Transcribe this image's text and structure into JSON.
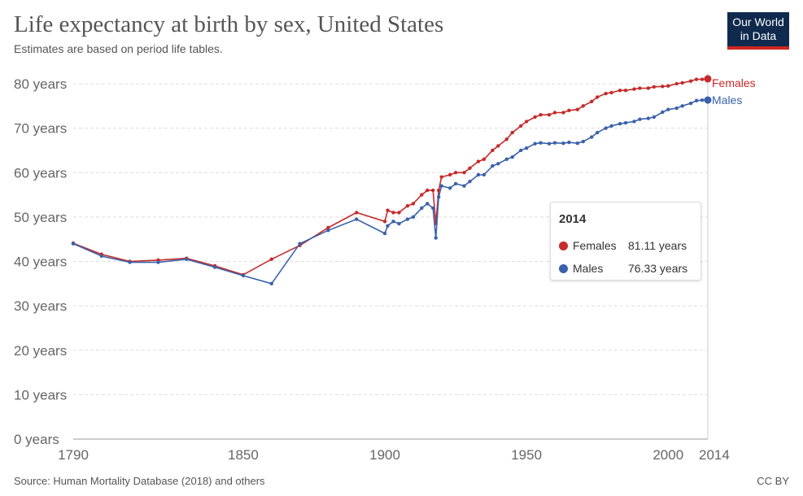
{
  "header": {
    "title": "Life expectancy at birth by sex, United States",
    "subtitle": "Estimates are based on period life tables.",
    "logo": "Our World in Data"
  },
  "footer": {
    "source": "Source: Human Mortality Database (2018) and others",
    "license": "CC BY"
  },
  "tooltip": {
    "year": "2014",
    "rows": [
      {
        "label": "Females",
        "value": "81.11 years"
      },
      {
        "label": "Males",
        "value": "76.33 years"
      }
    ]
  },
  "chart_data": {
    "type": "line",
    "title": "Life expectancy at birth by sex, United States",
    "xlabel": "",
    "ylabel": "",
    "xlim": [
      1790,
      2014
    ],
    "ylim": [
      0,
      80
    ],
    "xticks": [
      {
        "v": 1790,
        "l": "1790"
      },
      {
        "v": 1850,
        "l": "1850"
      },
      {
        "v": 1900,
        "l": "1900"
      },
      {
        "v": 1950,
        "l": "1950"
      },
      {
        "v": 2000,
        "l": "2000"
      },
      {
        "v": 2014,
        "l": "2014"
      }
    ],
    "yticks": [
      {
        "v": 0,
        "l": "0 years"
      },
      {
        "v": 10,
        "l": "10 years"
      },
      {
        "v": 20,
        "l": "20 years"
      },
      {
        "v": 30,
        "l": "30 years"
      },
      {
        "v": 40,
        "l": "40 years"
      },
      {
        "v": 50,
        "l": "50 years"
      },
      {
        "v": 60,
        "l": "60 years"
      },
      {
        "v": 70,
        "l": "70 years"
      },
      {
        "v": 80,
        "l": "80 years"
      }
    ],
    "grid": true,
    "legend": "right end labels",
    "series": [
      {
        "name": "Females",
        "color": "#c62a2a",
        "points": [
          [
            1790,
            44.1
          ],
          [
            1800,
            41.6
          ],
          [
            1810,
            40
          ],
          [
            1820,
            40.3
          ],
          [
            1830,
            40.7
          ],
          [
            1840,
            39
          ],
          [
            1850,
            37
          ],
          [
            1860,
            40.5
          ],
          [
            1870,
            43.6
          ],
          [
            1880,
            47.6
          ],
          [
            1890,
            51
          ],
          [
            1900,
            49
          ],
          [
            1901,
            51.5
          ],
          [
            1903,
            51
          ],
          [
            1905,
            51
          ],
          [
            1908,
            52.5
          ],
          [
            1910,
            53
          ],
          [
            1913,
            55
          ],
          [
            1915,
            56
          ],
          [
            1917,
            56
          ],
          [
            1918,
            48.5
          ],
          [
            1919,
            56
          ],
          [
            1920,
            59
          ],
          [
            1923,
            59.5
          ],
          [
            1925,
            60
          ],
          [
            1928,
            60
          ],
          [
            1930,
            61
          ],
          [
            1933,
            62.5
          ],
          [
            1935,
            63
          ],
          [
            1938,
            65
          ],
          [
            1940,
            66
          ],
          [
            1943,
            67.5
          ],
          [
            1945,
            69
          ],
          [
            1948,
            70.5
          ],
          [
            1950,
            71.5
          ],
          [
            1953,
            72.5
          ],
          [
            1955,
            73
          ],
          [
            1958,
            73
          ],
          [
            1960,
            73.5
          ],
          [
            1963,
            73.5
          ],
          [
            1965,
            74
          ],
          [
            1968,
            74.2
          ],
          [
            1970,
            75
          ],
          [
            1973,
            76
          ],
          [
            1975,
            77
          ],
          [
            1978,
            77.8
          ],
          [
            1980,
            78
          ],
          [
            1983,
            78.5
          ],
          [
            1985,
            78.5
          ],
          [
            1988,
            78.8
          ],
          [
            1990,
            79
          ],
          [
            1993,
            79
          ],
          [
            1995,
            79.3
          ],
          [
            1998,
            79.4
          ],
          [
            2000,
            79.5
          ],
          [
            2003,
            80
          ],
          [
            2005,
            80.2
          ],
          [
            2008,
            80.6
          ],
          [
            2010,
            81
          ],
          [
            2012,
            81
          ],
          [
            2014,
            81.11
          ]
        ]
      },
      {
        "name": "Males",
        "color": "#3a61aa",
        "points": [
          [
            1790,
            44
          ],
          [
            1800,
            41.2
          ],
          [
            1810,
            39.8
          ],
          [
            1820,
            39.8
          ],
          [
            1830,
            40.5
          ],
          [
            1840,
            38.7
          ],
          [
            1850,
            36.8
          ],
          [
            1860,
            35
          ],
          [
            1870,
            44
          ],
          [
            1880,
            47
          ],
          [
            1890,
            49.5
          ],
          [
            1900,
            46.3
          ],
          [
            1901,
            48
          ],
          [
            1903,
            49
          ],
          [
            1905,
            48.5
          ],
          [
            1908,
            49.5
          ],
          [
            1910,
            50
          ],
          [
            1913,
            52
          ],
          [
            1915,
            53
          ],
          [
            1917,
            52
          ],
          [
            1918,
            45.3
          ],
          [
            1919,
            54.5
          ],
          [
            1920,
            57
          ],
          [
            1923,
            56.5
          ],
          [
            1925,
            57.5
          ],
          [
            1928,
            57
          ],
          [
            1930,
            58
          ],
          [
            1933,
            59.5
          ],
          [
            1935,
            59.5
          ],
          [
            1938,
            61.5
          ],
          [
            1940,
            62
          ],
          [
            1943,
            63
          ],
          [
            1945,
            63.5
          ],
          [
            1948,
            65
          ],
          [
            1950,
            65.5
          ],
          [
            1953,
            66.5
          ],
          [
            1955,
            66.7
          ],
          [
            1958,
            66.5
          ],
          [
            1960,
            66.7
          ],
          [
            1963,
            66.6
          ],
          [
            1965,
            66.8
          ],
          [
            1968,
            66.6
          ],
          [
            1970,
            67
          ],
          [
            1973,
            68
          ],
          [
            1975,
            69
          ],
          [
            1978,
            70
          ],
          [
            1980,
            70.5
          ],
          [
            1983,
            71
          ],
          [
            1985,
            71.2
          ],
          [
            1988,
            71.5
          ],
          [
            1990,
            72
          ],
          [
            1993,
            72.2
          ],
          [
            1995,
            72.5
          ],
          [
            1998,
            73.6
          ],
          [
            2000,
            74.2
          ],
          [
            2003,
            74.5
          ],
          [
            2005,
            75
          ],
          [
            2008,
            75.6
          ],
          [
            2010,
            76.2
          ],
          [
            2012,
            76.3
          ],
          [
            2014,
            76.33
          ]
        ]
      }
    ]
  }
}
